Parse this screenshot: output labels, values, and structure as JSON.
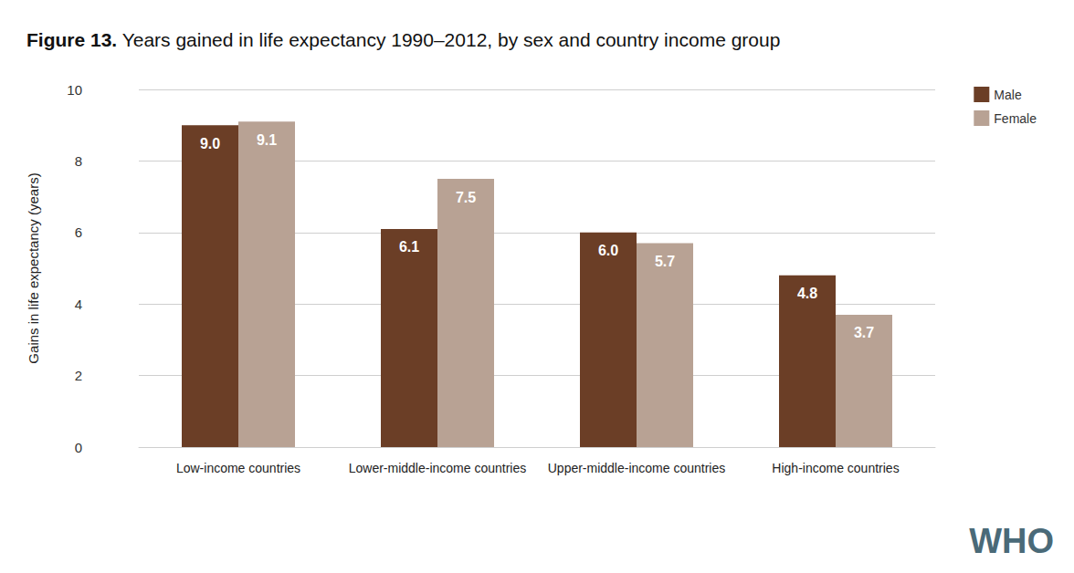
{
  "chart_data": {
    "type": "bar",
    "title": "Figure 13. Years gained in life expectancy 1990–2012, by sex and country income group",
    "y_label": "Gains in life expectancy (years)",
    "categories": [
      "Low-income countries",
      "Lower-middle-income countries",
      "Upper-middle-income countries",
      "High-income countries"
    ],
    "series": [
      {
        "name": "Male",
        "color": "#6b3e26",
        "values": [
          9.0,
          6.1,
          6.0,
          4.8
        ],
        "value_labels": [
          "9.0",
          "6.1",
          "6.0",
          "4.8"
        ]
      },
      {
        "name": "Female",
        "color": "#b8a294",
        "values": [
          9.1,
          7.5,
          5.7,
          3.7
        ],
        "value_labels": [
          "9.1",
          "7.5",
          "5.7",
          "3.7"
        ]
      }
    ],
    "ylim": [
      0,
      10
    ],
    "yticks": [
      0,
      2,
      4,
      6,
      8,
      10
    ],
    "grid": true,
    "legend": "top right",
    "data_labels": true,
    "annotations": [
      "WHO"
    ]
  }
}
